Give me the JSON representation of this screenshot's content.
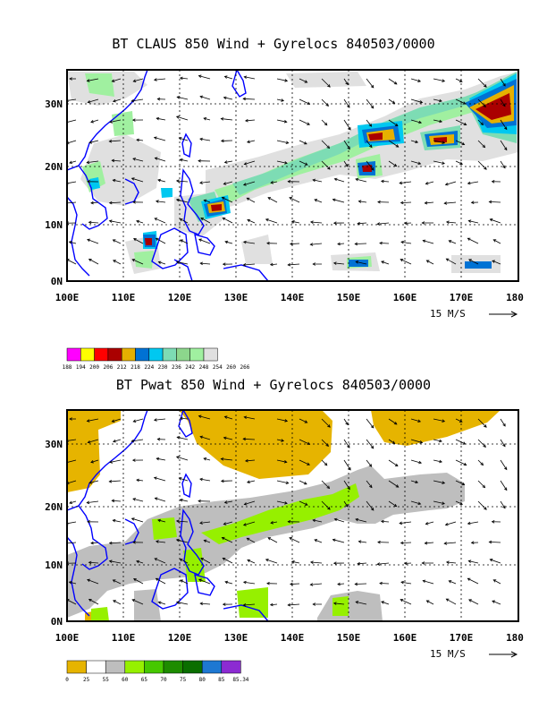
{
  "panels": [
    {
      "title": "BT CLAUS 850 Wind + Gyrelocs 840503/0000",
      "x_ticks": [
        "100E",
        "110E",
        "120E",
        "130E",
        "140E",
        "150E",
        "160E",
        "170E",
        "180"
      ],
      "y_ticks": [
        "0N",
        "10N",
        "20N",
        "30N"
      ],
      "reference_vector": "15 M/S",
      "colorbar": {
        "colors": [
          "#ff00ff",
          "#ffff00",
          "#ff0000",
          "#aa0000",
          "#e6b000",
          "#0072d4",
          "#00c8f0",
          "#7ddcb4",
          "#8cd68c",
          "#a0f0a0",
          "#e0e0e0"
        ],
        "labels": [
          "188",
          "194",
          "200",
          "206",
          "212",
          "218",
          "224",
          "230",
          "236",
          "242",
          "248",
          "254",
          "260",
          "266"
        ]
      }
    },
    {
      "title": "BT Pwat 850 Wind + Gyrelocs 840503/0000",
      "x_ticks": [
        "100E",
        "110E",
        "120E",
        "130E",
        "140E",
        "150E",
        "160E",
        "170E",
        "180"
      ],
      "y_ticks": [
        "0N",
        "10N",
        "20N",
        "30N"
      ],
      "reference_vector": "15 M/S",
      "colorbar": {
        "colors": [
          "#e6b400",
          "#ffffff",
          "#bebebe",
          "#96f000",
          "#46c800",
          "#1e8c00",
          "#0a6e00",
          "#1e78d2",
          "#8c2bd2"
        ],
        "labels": [
          "0",
          "25",
          "55",
          "60",
          "65",
          "70",
          "75",
          "80",
          "85",
          "85.34"
        ]
      }
    }
  ],
  "colors": {
    "coastline": "#0000ff",
    "frame": "#000000",
    "grid": "#000000"
  }
}
